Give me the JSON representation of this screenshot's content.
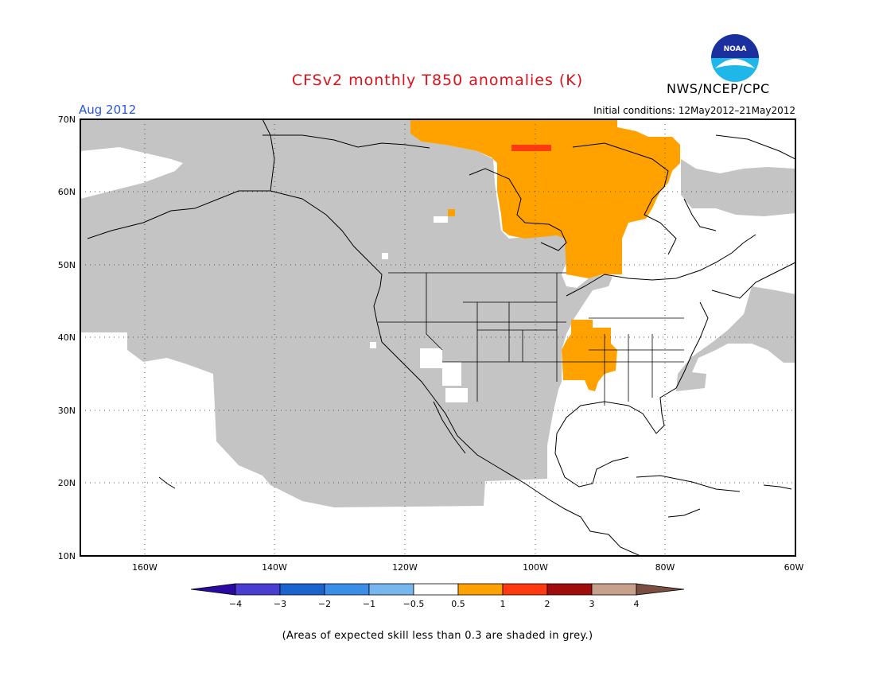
{
  "title": "CFSv2 monthly T850 anomalies (K)",
  "organization": "NWS/NCEP/CPC",
  "logo_text": "NOAA",
  "valid_month": "Aug 2012",
  "initial_conditions": "Initial conditions: 12May2012–21May2012",
  "footnote": "(Areas of expected skill less than 0.3 are shaded in grey.)",
  "map": {
    "lat_range": [
      10,
      70
    ],
    "lon_range": [
      -170,
      -60
    ],
    "lat_labels": [
      "70N",
      "60N",
      "50N",
      "40N",
      "30N",
      "20N",
      "10N"
    ],
    "lon_labels": [
      "160W",
      "140W",
      "120W",
      "100W",
      "80W",
      "60W"
    ],
    "gridlines": "dotted",
    "colors": {
      "grey_low_skill": "#c4c4c4",
      "warm_0.5_1": "#ffa200",
      "warm_1_2": "#ff3a10",
      "land_outline": "#000000"
    }
  },
  "colorbar": {
    "ticks": [
      "−4",
      "−3",
      "−2",
      "−1",
      "−0.5",
      "0.5",
      "1",
      "2",
      "3",
      "4"
    ],
    "colors": [
      "#2a0aa0",
      "#4a3ed2",
      "#1a64d0",
      "#3a8ee8",
      "#78b6f0",
      "#ffffff",
      "#ffa200",
      "#ff3a10",
      "#a00c0c",
      "#c8a08c",
      "#7a4e40"
    ]
  }
}
